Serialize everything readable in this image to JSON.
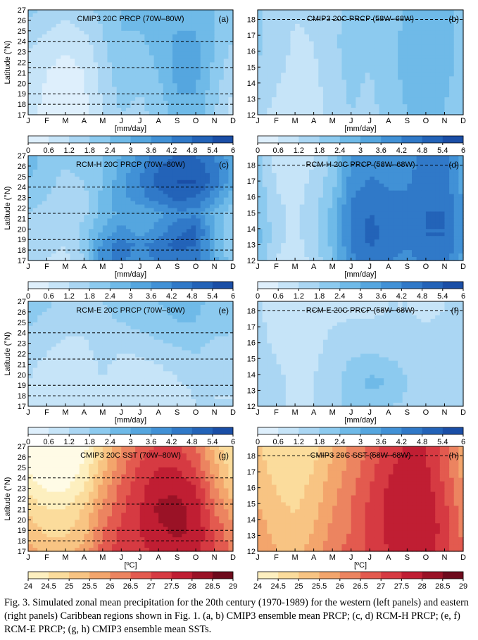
{
  "figure": {
    "months": [
      "J",
      "F",
      "M",
      "A",
      "M",
      "J",
      "J",
      "A",
      "S",
      "O",
      "N",
      "D"
    ],
    "lat_label_west": "Latitude (°N)",
    "west_yticks": [
      "17",
      "18",
      "19",
      "20",
      "21",
      "22",
      "23",
      "24",
      "25",
      "26",
      "27"
    ],
    "east_yticks": [
      "12",
      "13",
      "14",
      "15",
      "16",
      "17",
      "18"
    ],
    "prcp_unit": "[mm/day]",
    "sst_unit": "[ºC]",
    "prcp_colorbar": {
      "ticks": [
        "0",
        "0.6",
        "1.2",
        "1.8",
        "2.4",
        "3",
        "3.6",
        "4.2",
        "4.8",
        "5.4",
        "6"
      ],
      "colors": [
        "#f2f9fe",
        "#deeffc",
        "#c6e4f8",
        "#aad6f3",
        "#8ccaef",
        "#6fbae8",
        "#55a6df",
        "#4191d6",
        "#3079c8",
        "#2363b8",
        "#1a4ea6"
      ]
    },
    "sst_colorbar": {
      "ticks": [
        "24",
        "24.5",
        "25",
        "25.5",
        "26",
        "26.5",
        "27",
        "27.5",
        "28",
        "28.5",
        "29"
      ],
      "colors": [
        "#fffbe6",
        "#fdefbf",
        "#fbdc9c",
        "#f8c483",
        "#f3a56c",
        "#ec8460",
        "#e35a4f",
        "#d63a42",
        "#c01e33",
        "#9a1226",
        "#6e0a1c"
      ]
    },
    "panels": [
      {
        "id": "a",
        "title": "CMIP3 20C PRCP (70W–80W)",
        "label": "(a)",
        "region": "west",
        "var": "prcp"
      },
      {
        "id": "b",
        "title": "CMIP3 20C PRCP (58W–68W)",
        "label": "(b)",
        "region": "east",
        "var": "prcp"
      },
      {
        "id": "c",
        "title": "RCM-H 20C PRCP (70W–80W)",
        "label": "(c)",
        "region": "west",
        "var": "prcp"
      },
      {
        "id": "d",
        "title": "RCM-H 20C PRCP (58W–68W)",
        "label": "(d)",
        "region": "east",
        "var": "prcp"
      },
      {
        "id": "e",
        "title": "RCM-E 20C PRCP (70W–80W)",
        "label": "(e)",
        "region": "west",
        "var": "prcp"
      },
      {
        "id": "f",
        "title": "RCM-E 20C PRCP (58W–68W)",
        "label": "(f)",
        "region": "east",
        "var": "prcp"
      },
      {
        "id": "g",
        "title": "CMIP3 20C SST (70W–80W)",
        "label": "(g)",
        "region": "west",
        "var": "sst"
      },
      {
        "id": "h",
        "title": "CMIP3 20C SST (58W–68W)",
        "label": "(h)",
        "region": "east",
        "var": "sst"
      }
    ]
  },
  "chart_data": {
    "type": "heatmap",
    "description_axes": {
      "x": "month (Jan–Dec)",
      "y_west": "latitude 17–27 °N",
      "y_east": "latitude 12–18 °N"
    },
    "x": [
      "J",
      "F",
      "M",
      "A",
      "M",
      "J",
      "J",
      "A",
      "S",
      "O",
      "N",
      "D"
    ],
    "dashed_latitudes_west": [
      18,
      19,
      21.5,
      24
    ],
    "dashed_latitudes_east": [
      18
    ],
    "prcp_levels": [
      0,
      0.6,
      1.2,
      1.8,
      2.4,
      3,
      3.6,
      4.2,
      4.8,
      5.4,
      6
    ],
    "sst_levels": [
      24,
      24.5,
      25,
      25.5,
      26,
      26.5,
      27,
      27.5,
      28,
      28.5,
      29
    ],
    "panels": {
      "a": {
        "y": [
          17,
          19,
          21,
          23,
          25,
          27
        ],
        "z": [
          [
            1.4,
            1.0,
            0.8,
            1.0,
            1.8,
            2.4,
            2.2,
            2.6,
            3.2,
            3.4,
            2.4,
            1.6
          ],
          [
            1.5,
            1.1,
            0.9,
            1.1,
            1.9,
            2.6,
            2.4,
            2.8,
            3.6,
            3.6,
            2.6,
            1.7
          ],
          [
            1.6,
            1.2,
            1.0,
            1.2,
            2.0,
            2.8,
            2.6,
            3.0,
            3.8,
            3.8,
            2.8,
            1.9
          ],
          [
            1.8,
            1.4,
            1.2,
            1.4,
            2.2,
            3.0,
            2.8,
            3.2,
            3.8,
            3.8,
            3.0,
            2.2
          ],
          [
            2.2,
            1.8,
            1.6,
            1.8,
            2.4,
            3.0,
            3.0,
            3.3,
            3.6,
            3.6,
            3.0,
            2.6
          ],
          [
            2.6,
            2.2,
            2.0,
            2.2,
            2.6,
            3.0,
            3.0,
            3.2,
            3.4,
            3.4,
            3.0,
            2.8
          ]
        ]
      },
      "b": {
        "y": [
          12,
          13.5,
          15,
          16.5,
          18
        ],
        "z": [
          [
            2.0,
            1.6,
            1.4,
            1.5,
            2.0,
            2.4,
            2.2,
            2.6,
            3.0,
            3.2,
            3.0,
            2.4
          ],
          [
            2.2,
            1.8,
            1.4,
            1.6,
            2.1,
            2.5,
            2.3,
            2.7,
            3.1,
            3.3,
            3.1,
            2.6
          ],
          [
            2.4,
            2.0,
            1.6,
            1.7,
            2.2,
            2.6,
            2.4,
            2.8,
            3.2,
            3.4,
            3.2,
            2.8
          ],
          [
            2.5,
            2.1,
            1.7,
            1.8,
            2.3,
            2.6,
            2.5,
            2.8,
            3.2,
            3.4,
            3.3,
            2.8
          ],
          [
            2.5,
            2.1,
            1.8,
            1.9,
            2.3,
            2.5,
            2.5,
            2.7,
            3.1,
            3.3,
            3.2,
            2.8
          ]
        ]
      },
      "c": {
        "y": [
          17,
          18.5,
          20,
          21.5,
          23,
          24.5,
          26,
          27
        ],
        "z": [
          [
            2.0,
            1.8,
            1.6,
            2.4,
            4.6,
            5.0,
            4.4,
            5.0,
            5.2,
            5.0,
            3.8,
            2.6
          ],
          [
            2.2,
            2.0,
            1.8,
            2.6,
            4.4,
            5.2,
            4.6,
            5.2,
            5.6,
            5.4,
            3.6,
            2.4
          ],
          [
            2.4,
            2.2,
            2.0,
            2.6,
            3.6,
            4.4,
            3.8,
            4.4,
            5.2,
            5.6,
            3.6,
            2.4
          ],
          [
            2.4,
            2.2,
            1.8,
            2.2,
            3.2,
            3.8,
            3.6,
            4.0,
            4.6,
            4.6,
            3.4,
            2.6
          ],
          [
            2.6,
            2.4,
            2.0,
            2.2,
            3.2,
            4.0,
            4.6,
            5.2,
            5.6,
            5.4,
            4.4,
            3.2
          ],
          [
            3.0,
            2.6,
            2.2,
            2.4,
            3.0,
            4.0,
            4.8,
            5.6,
            6.0,
            6.0,
            5.2,
            3.8
          ],
          [
            3.2,
            2.8,
            2.4,
            2.6,
            3.0,
            3.8,
            4.6,
            5.4,
            5.8,
            5.8,
            5.0,
            3.8
          ],
          [
            3.2,
            2.8,
            2.6,
            2.6,
            3.0,
            3.6,
            4.4,
            5.0,
            5.4,
            5.4,
            4.8,
            3.8
          ]
        ]
      },
      "d": {
        "y": [
          12,
          13.5,
          15,
          16.5,
          18
        ],
        "z": [
          [
            3.0,
            1.8,
            1.4,
            2.0,
            3.0,
            4.6,
            5.2,
            4.8,
            4.6,
            5.0,
            5.2,
            4.0
          ],
          [
            3.2,
            2.0,
            1.6,
            2.2,
            3.2,
            5.0,
            5.6,
            5.2,
            5.0,
            5.4,
            5.4,
            4.2
          ],
          [
            3.0,
            2.0,
            1.6,
            2.2,
            3.2,
            5.0,
            5.4,
            5.2,
            5.0,
            5.4,
            5.4,
            4.2
          ],
          [
            2.8,
            1.8,
            1.6,
            2.0,
            2.8,
            4.6,
            5.0,
            4.8,
            4.8,
            5.2,
            5.2,
            4.0
          ],
          [
            2.6,
            1.6,
            1.4,
            1.8,
            2.6,
            4.2,
            4.6,
            4.6,
            4.6,
            5.0,
            5.0,
            3.8
          ]
        ]
      },
      "e": {
        "y": [
          17,
          19,
          21,
          23,
          25,
          27
        ],
        "z": [
          [
            1.8,
            1.6,
            1.4,
            1.4,
            1.8,
            1.4,
            1.3,
            1.4,
            1.6,
            1.8,
            1.8,
            1.8
          ],
          [
            1.8,
            1.6,
            1.4,
            1.4,
            1.8,
            1.4,
            1.4,
            1.5,
            1.7,
            1.9,
            1.8,
            1.8
          ],
          [
            1.9,
            1.7,
            1.5,
            1.5,
            1.9,
            1.6,
            1.6,
            1.8,
            2.0,
            2.2,
            2.0,
            1.9
          ],
          [
            2.2,
            1.9,
            1.7,
            1.7,
            2.2,
            2.0,
            2.1,
            2.3,
            2.5,
            2.6,
            2.3,
            2.2
          ],
          [
            2.5,
            2.2,
            2.0,
            2.0,
            2.3,
            2.4,
            2.6,
            2.8,
            3.0,
            3.0,
            2.7,
            2.6
          ],
          [
            2.7,
            2.5,
            2.3,
            2.2,
            2.4,
            2.6,
            2.8,
            3.0,
            3.2,
            3.1,
            2.9,
            2.8
          ]
        ]
      },
      "f": {
        "y": [
          12,
          13.5,
          15,
          16.5,
          18
        ],
        "z": [
          [
            2.2,
            2.0,
            1.6,
            1.8,
            2.2,
            2.6,
            2.6,
            2.4,
            2.3,
            2.2,
            2.2,
            2.2
          ],
          [
            2.2,
            2.0,
            1.6,
            1.8,
            2.2,
            2.7,
            3.2,
            3.0,
            2.4,
            2.2,
            2.2,
            2.2
          ],
          [
            2.1,
            1.8,
            1.5,
            1.7,
            2.1,
            2.4,
            2.5,
            2.4,
            2.2,
            2.1,
            2.1,
            2.1
          ],
          [
            2.0,
            1.6,
            1.4,
            1.5,
            1.9,
            2.0,
            2.0,
            2.0,
            2.0,
            1.9,
            2.0,
            2.0
          ],
          [
            1.9,
            1.5,
            1.3,
            1.4,
            1.6,
            1.7,
            1.7,
            1.8,
            1.8,
            1.7,
            1.8,
            1.9
          ]
        ]
      },
      "g": {
        "y": [
          17,
          19,
          21,
          23,
          25,
          27
        ],
        "z": [
          [
            26.2,
            25.8,
            25.8,
            26.2,
            27.2,
            27.8,
            27.8,
            28.2,
            28.4,
            28.2,
            27.6,
            26.8
          ],
          [
            25.8,
            25.4,
            25.4,
            25.8,
            27.0,
            27.6,
            28.0,
            28.4,
            28.6,
            28.4,
            27.4,
            26.6
          ],
          [
            25.4,
            25.0,
            25.0,
            25.6,
            26.6,
            27.4,
            28.0,
            28.6,
            28.7,
            28.3,
            27.0,
            26.2
          ],
          [
            24.8,
            24.4,
            24.4,
            25.0,
            26.2,
            27.2,
            27.8,
            28.4,
            28.4,
            28.0,
            26.6,
            25.6
          ],
          [
            24.4,
            24.0,
            24.0,
            24.6,
            25.8,
            26.8,
            27.6,
            28.0,
            28.0,
            27.4,
            26.2,
            25.2
          ],
          [
            24.2,
            23.8,
            23.8,
            24.3,
            25.4,
            26.4,
            27.2,
            27.6,
            27.6,
            27.0,
            25.8,
            24.9
          ]
        ]
      },
      "h": {
        "y": [
          12,
          13.5,
          15,
          16.5,
          18
        ],
        "z": [
          [
            26.4,
            26.0,
            25.8,
            26.2,
            26.8,
            27.2,
            27.6,
            28.0,
            28.2,
            28.2,
            27.8,
            27.0
          ],
          [
            26.2,
            25.8,
            25.6,
            26.0,
            26.6,
            27.0,
            27.6,
            28.2,
            28.4,
            28.4,
            27.8,
            26.8
          ],
          [
            26.0,
            25.6,
            25.4,
            25.8,
            26.4,
            27.0,
            27.6,
            28.2,
            28.5,
            28.4,
            27.6,
            26.6
          ],
          [
            25.8,
            25.4,
            25.2,
            25.6,
            26.2,
            26.8,
            27.4,
            28.0,
            28.4,
            28.2,
            27.4,
            26.4
          ],
          [
            25.6,
            25.2,
            25.0,
            25.4,
            26.0,
            26.6,
            27.2,
            27.8,
            28.1,
            28.0,
            27.2,
            26.2
          ]
        ]
      }
    }
  },
  "caption": "Fig. 3. Simulated zonal mean precipitation for the 20th century (1970-1989) for the western (left panels) and eastern (right panels) Caribbean regions shown in Fig. 1. (a, b) CMIP3 ensemble mean PRCP; (c, d) RCM-H PRCP; (e, f) RCM-E PRCP; (g, h) CMIP3 ensemble mean SSTs."
}
